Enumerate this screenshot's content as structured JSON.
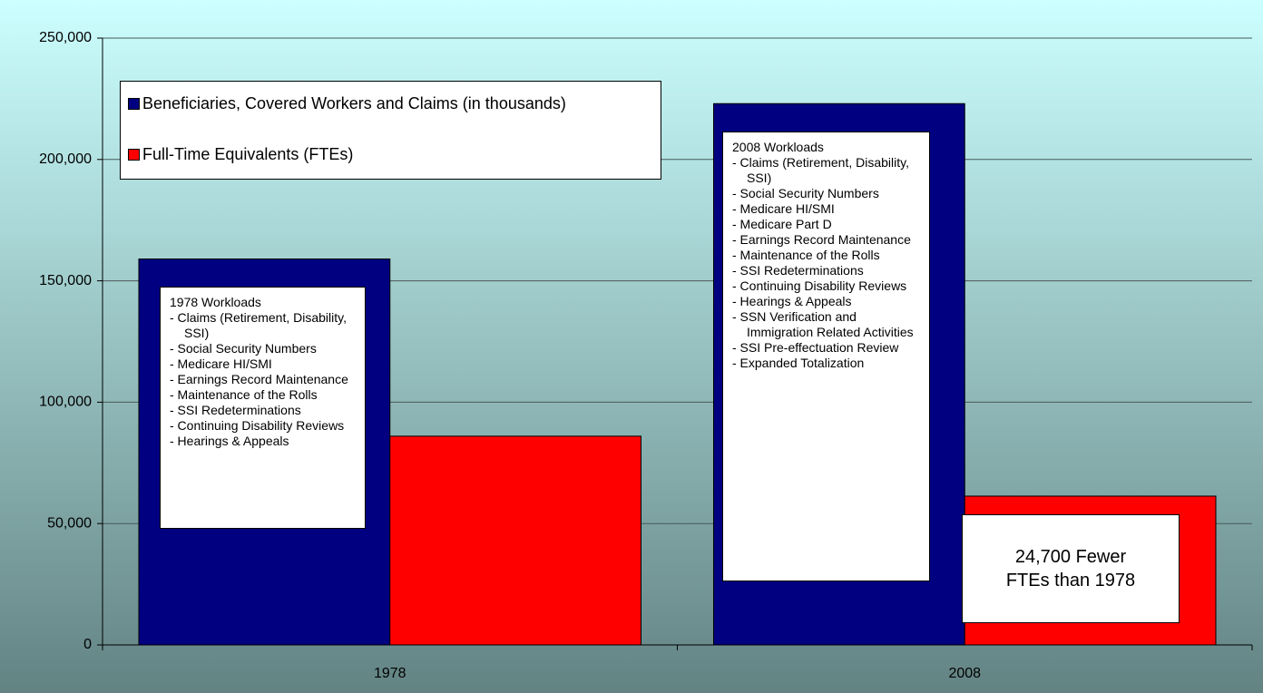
{
  "chart_data": {
    "type": "bar",
    "categories": [
      "1978",
      "2008"
    ],
    "series": [
      {
        "name": "Beneficiaries, Covered Workers and Claims (in thousands)",
        "color": "#000080",
        "values": [
          159000,
          223000
        ]
      },
      {
        "name": "Full-Time Equivalents (FTEs)",
        "color": "#ff0000",
        "values": [
          86000,
          61300
        ]
      }
    ],
    "ylim": [
      0,
      250000
    ],
    "yticks": [
      0,
      {
        "value": 50000,
        "label": "50,000"
      },
      {
        "value": 100000,
        "label": "100,000"
      },
      {
        "value": 150000,
        "label": "150,000"
      },
      {
        "value": 200000,
        "label": "200,000"
      },
      {
        "value": 250000,
        "label": "250,000"
      }
    ],
    "grid": true,
    "legend": "top-left",
    "annotations": [
      {
        "title": "1978 Workloads",
        "items": [
          "- Claims (Retirement, Disability, SSI)",
          "- Social Security Numbers",
          "- Medicare HI/SMI",
          "- Earnings Record Maintenance",
          "- Maintenance of the Rolls",
          "- SSI Redeterminations",
          "- Continuing Disability Reviews",
          "- Hearings & Appeals"
        ]
      },
      {
        "title": "2008 Workloads",
        "items": [
          "- Claims (Retirement, Disability, SSI)",
          "- Social Security Numbers",
          "- Medicare HI/SMI",
          "- Medicare Part D",
          "- Earnings Record Maintenance",
          "- Maintenance of the Rolls",
          "- SSI Redeterminations",
          "- Continuing Disability Reviews",
          "- Hearings & Appeals",
          "- SSN Verification and Immigration Related Activities",
          "- SSI Pre-effectuation Review",
          "- Expanded Totalization"
        ]
      },
      {
        "text": "24,700 Fewer FTEs than 1978"
      }
    ]
  }
}
